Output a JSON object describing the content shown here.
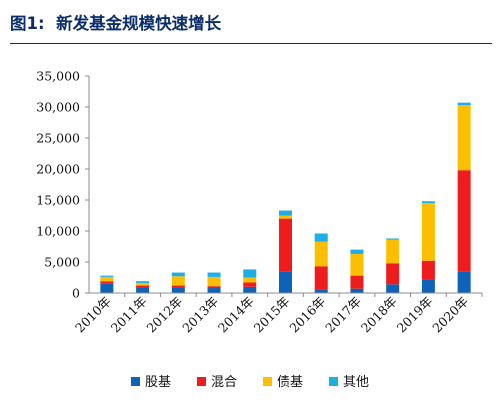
{
  "figure": {
    "label": "图1:",
    "title": "新发基金规模快速增长"
  },
  "colors": {
    "title": "#0b2d6b",
    "stock": "#0e62b8",
    "mixed": "#ee1c1c",
    "bond": "#fcbf00",
    "other": "#1eaee6",
    "axis": "#8c8c8c"
  },
  "chart_data": {
    "type": "bar",
    "stacked": true,
    "title": "",
    "xlabel": "",
    "ylabel": "",
    "ylim": [
      0,
      35000
    ],
    "yticks": [
      "0",
      "5,000",
      "10,000",
      "15,000",
      "20,000",
      "25,000",
      "30,000",
      "35,000"
    ],
    "grid": false,
    "legend_position": "bottom",
    "categories": [
      "2010年",
      "2011年",
      "2012年",
      "2013年",
      "2014年",
      "2015年",
      "2016年",
      "2017年",
      "2018年",
      "2019年",
      "2020年"
    ],
    "series": [
      {
        "name": "股基",
        "color": "#0e62b8",
        "values": [
          1500,
          900,
          900,
          800,
          1000,
          3500,
          500,
          700,
          1400,
          2200,
          3500
        ]
      },
      {
        "name": "混合",
        "color": "#ee1c1c",
        "values": [
          400,
          300,
          300,
          300,
          700,
          8500,
          3800,
          2100,
          3400,
          3000,
          16300
        ]
      },
      {
        "name": "债基",
        "color": "#fcbf00",
        "values": [
          700,
          400,
          1500,
          1500,
          800,
          500,
          4000,
          3500,
          3800,
          9300,
          10500
        ]
      },
      {
        "name": "其他",
        "color": "#1eaee6",
        "values": [
          200,
          300,
          600,
          700,
          1300,
          800,
          1300,
          700,
          200,
          300,
          400
        ]
      }
    ]
  }
}
